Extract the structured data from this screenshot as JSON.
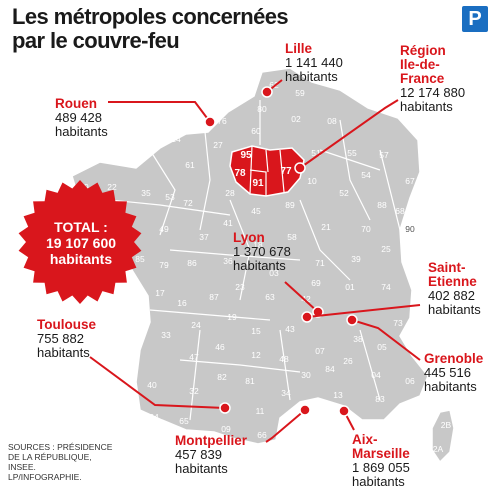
{
  "header": {
    "title_line1": "Les métropoles concernées",
    "title_line2": "par le couvre-feu",
    "logo_letter": "P"
  },
  "total": {
    "line1": "TOTAL :",
    "line2": "19 107 600",
    "line3": "habitants"
  },
  "metropoles": [
    {
      "key": "lille",
      "name_lines": [
        "Lille"
      ],
      "population": "1 141 440",
      "unit": "habitants"
    },
    {
      "key": "idf",
      "name_lines": [
        "Région",
        "Ile-de-",
        "France"
      ],
      "population": "12 174 880",
      "unit": "habitants"
    },
    {
      "key": "rouen",
      "name_lines": [
        "Rouen"
      ],
      "population": "489 428",
      "unit": "habitants"
    },
    {
      "key": "lyon",
      "name_lines": [
        "Lyon"
      ],
      "population": "1 370 678",
      "unit": "habitants"
    },
    {
      "key": "saint-etienne",
      "name_lines": [
        "Saint-",
        "Etienne"
      ],
      "population": "402 882",
      "unit": "habitants"
    },
    {
      "key": "toulouse",
      "name_lines": [
        "Toulouse"
      ],
      "population": "755 882",
      "unit": "habitants"
    },
    {
      "key": "grenoble",
      "name_lines": [
        "Grenoble"
      ],
      "population": "445 516",
      "unit": "habitants"
    },
    {
      "key": "aix-marseille",
      "name_lines": [
        "Aix-",
        "Marseille"
      ],
      "population": "1 869 055",
      "unit": "habitants"
    },
    {
      "key": "montpellier",
      "name_lines": [
        "Montpellier"
      ],
      "population": "457 839",
      "unit": "habitants"
    }
  ],
  "idf_departments": [
    "95",
    "78",
    "91",
    "77"
  ],
  "department_numbers": [
    "62",
    "59",
    "80",
    "02",
    "08",
    "76",
    "60",
    "14",
    "27",
    "50",
    "61",
    "28",
    "51",
    "55",
    "57",
    "67",
    "54",
    "88",
    "68",
    "10",
    "52",
    "70",
    "90",
    "29",
    "22",
    "35",
    "53",
    "72",
    "45",
    "89",
    "21",
    "25",
    "56",
    "44",
    "49",
    "37",
    "41",
    "18",
    "58",
    "71",
    "39",
    "85",
    "79",
    "86",
    "36",
    "03",
    "01",
    "74",
    "73",
    "17",
    "16",
    "87",
    "23",
    "63",
    "42",
    "69",
    "38",
    "24",
    "19",
    "15",
    "43",
    "07",
    "26",
    "05",
    "33",
    "46",
    "12",
    "48",
    "30",
    "84",
    "04",
    "06",
    "47",
    "82",
    "81",
    "34",
    "13",
    "83",
    "40",
    "32",
    "31",
    "11",
    "64",
    "65",
    "09",
    "66",
    "2B",
    "2A"
  ],
  "sources": {
    "line1": "SOURCES : PRÉSIDENCE",
    "line2": "DE LA RÉPUBLIQUE,",
    "line3": "INSEE.",
    "line4": "LP/INFOGRAPHIE."
  },
  "colors": {
    "accent_red": "#d9161c",
    "map_fill": "#c8c8c8",
    "map_stroke": "#ffffff",
    "dept_number": "#ffffff"
  }
}
